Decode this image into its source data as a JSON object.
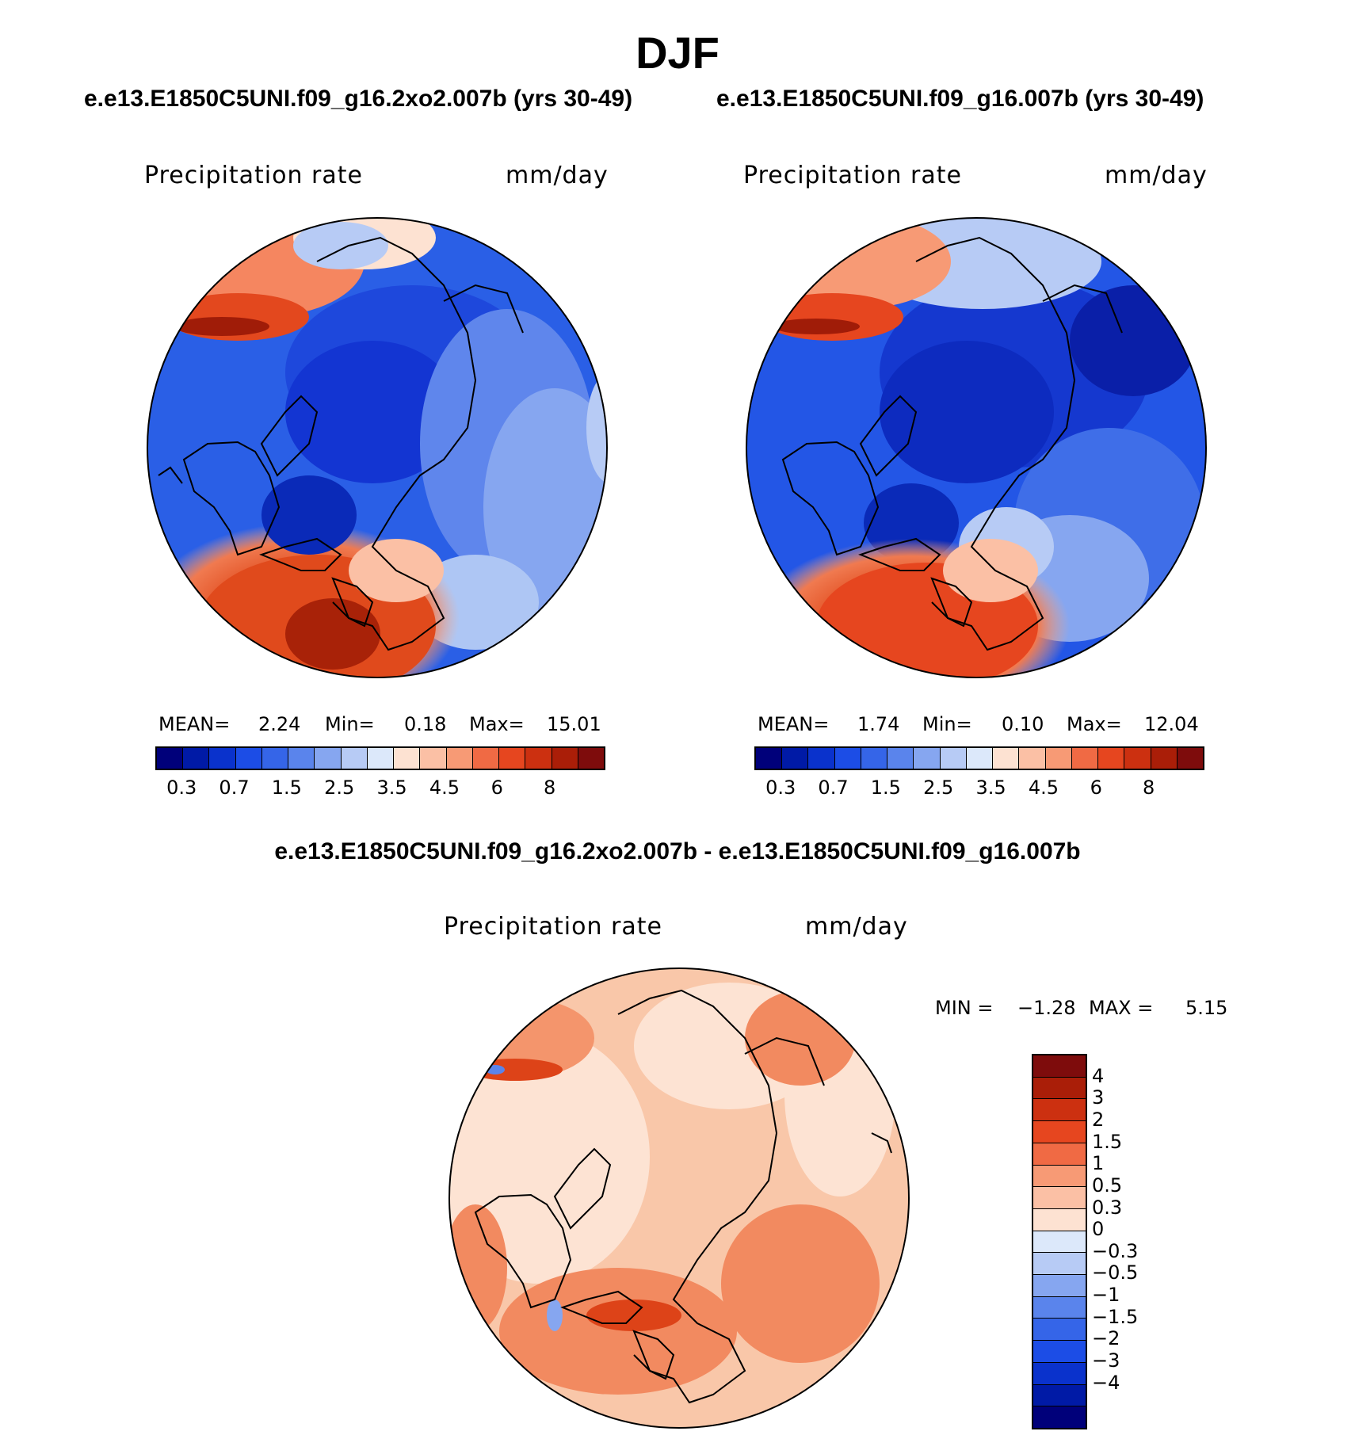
{
  "figure": {
    "title": "DJF"
  },
  "panels": {
    "left": {
      "case_title": "e.e13.E1850C5UNI.f09_g16.2xo2.007b (yrs 30-49)",
      "variable": "Precipitation rate",
      "units": "mm/day",
      "stats": {
        "mean_label": "MEAN=",
        "mean": "2.24",
        "min_label": "Min=",
        "min": "0.18",
        "max_label": "Max=",
        "max": "15.01"
      }
    },
    "right": {
      "case_title": "e.e13.E1850C5UNI.f09_g16.007b (yrs 30-49)",
      "variable": "Precipitation rate",
      "units": "mm/day",
      "stats": {
        "mean_label": "MEAN=",
        "mean": "1.74",
        "min_label": "Min=",
        "min": "0.10",
        "max_label": "Max=",
        "max": "12.04"
      }
    },
    "diff": {
      "title": "e.e13.E1850C5UNI.f09_g16.2xo2.007b - e.e13.E1850C5UNI.f09_g16.007b",
      "variable": "Precipitation rate",
      "units": "mm/day",
      "stats": {
        "min_label": "MIN =",
        "min": "−1.28",
        "max_label": "MAX =",
        "max": "5.15"
      }
    }
  },
  "colorbars": {
    "abs": {
      "colors": [
        "#00007a",
        "#001aa6",
        "#0a32cc",
        "#1c4de6",
        "#3565e8",
        "#5a84ec",
        "#86a6f0",
        "#b7cbf5",
        "#dce8fa",
        "#fde2d2",
        "#fbc0a5",
        "#f79a75",
        "#f06a44",
        "#e6461f",
        "#cc3010",
        "#aa1e08",
        "#7e0c0c"
      ],
      "ticks": [
        "0.3",
        "0.7",
        "1.5",
        "2.5",
        "3.5",
        "4.5",
        "6",
        "8"
      ]
    },
    "diff": {
      "colors": [
        "#7e0c0c",
        "#aa1e08",
        "#cc3010",
        "#e6461f",
        "#f06a44",
        "#f79a75",
        "#fbc0a5",
        "#fde2d2",
        "#dce8fa",
        "#b7cbf5",
        "#86a6f0",
        "#5a84ec",
        "#3565e8",
        "#1c4de6",
        "#0a32cc",
        "#001aa6",
        "#00007a"
      ],
      "ticks": [
        "4",
        "3",
        "2",
        "1.5",
        "1",
        "0.5",
        "0.3",
        "0",
        "−0.3",
        "−0.5",
        "−1",
        "−1.5",
        "−2",
        "−3",
        "−4"
      ]
    }
  },
  "colors": {
    "ocean_low": "#2356e6",
    "arctic_core": "#0d2fc9",
    "atlantic_high": "#e04a1c",
    "diff_bg": "#f9c7a9",
    "diff_light": "#fde3d3",
    "coast": "#000000"
  }
}
